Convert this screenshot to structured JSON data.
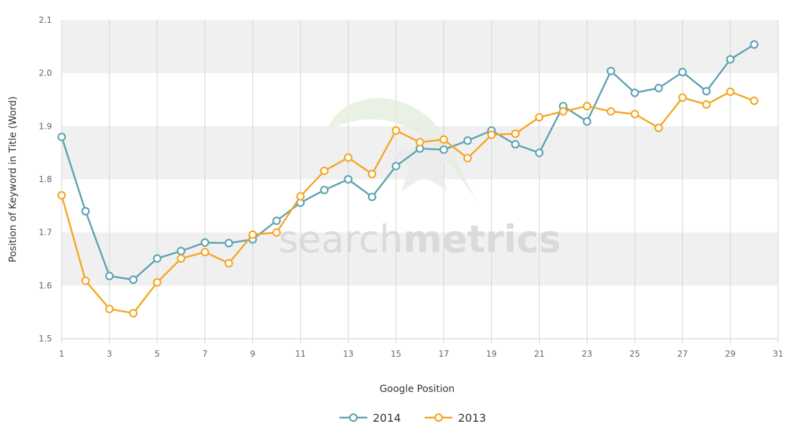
{
  "chart_data": {
    "type": "line",
    "title": "",
    "xlabel": "Google Position",
    "ylabel": "Position of Keyword in Title (Word)",
    "xlim": [
      1,
      31
    ],
    "ylim": [
      1.5,
      2.1
    ],
    "x_ticks": [
      1,
      3,
      5,
      7,
      9,
      11,
      13,
      15,
      17,
      19,
      21,
      23,
      25,
      27,
      29,
      31
    ],
    "x_tick_labels": [
      "1",
      "3",
      "5",
      "7",
      "9",
      "11",
      "13",
      "15",
      "17",
      "19",
      "21",
      "23",
      "25",
      "27",
      "29",
      "31"
    ],
    "y_ticks": [
      1.5,
      1.6,
      1.7,
      1.8,
      1.9,
      2.0,
      2.1
    ],
    "y_tick_labels": [
      "1.5",
      "1.6",
      "1.7",
      "1.8",
      "1.9",
      "2.0",
      "2.1"
    ],
    "grid": "alternating horizontal bands",
    "legend_position": "bottom-center",
    "x": [
      1,
      2,
      3,
      4,
      5,
      6,
      7,
      8,
      9,
      10,
      11,
      12,
      13,
      14,
      15,
      16,
      17,
      18,
      19,
      20,
      21,
      22,
      23,
      24,
      25,
      26,
      27,
      28,
      29,
      30
    ],
    "series": [
      {
        "name": "2014",
        "color": "#5da2b2",
        "values": [
          1.88,
          1.74,
          1.618,
          1.611,
          1.651,
          1.665,
          1.681,
          1.68,
          1.687,
          1.722,
          1.756,
          1.78,
          1.8,
          1.767,
          1.825,
          1.858,
          1.856,
          1.873,
          1.892,
          1.866,
          1.85,
          1.938,
          1.909,
          2.004,
          1.963,
          1.972,
          2.002,
          1.966,
          2.026,
          2.054
        ]
      },
      {
        "name": "2013",
        "color": "#f5a623",
        "values": [
          1.77,
          1.609,
          1.556,
          1.548,
          1.606,
          1.651,
          1.663,
          1.642,
          1.696,
          1.7,
          1.768,
          1.816,
          1.841,
          1.81,
          1.892,
          1.87,
          1.875,
          1.84,
          1.884,
          1.886,
          1.917,
          1.928,
          1.938,
          1.928,
          1.923,
          1.897,
          1.954,
          1.941,
          1.965,
          1.948
        ]
      }
    ]
  },
  "watermark": {
    "text_light": "search",
    "text_bold": "metrics"
  },
  "colors": {
    "band": "#f0f0f0",
    "grid_line": "#d3d3d3",
    "axis_line": "#cccccc",
    "marker_fill": "#ffffff"
  }
}
